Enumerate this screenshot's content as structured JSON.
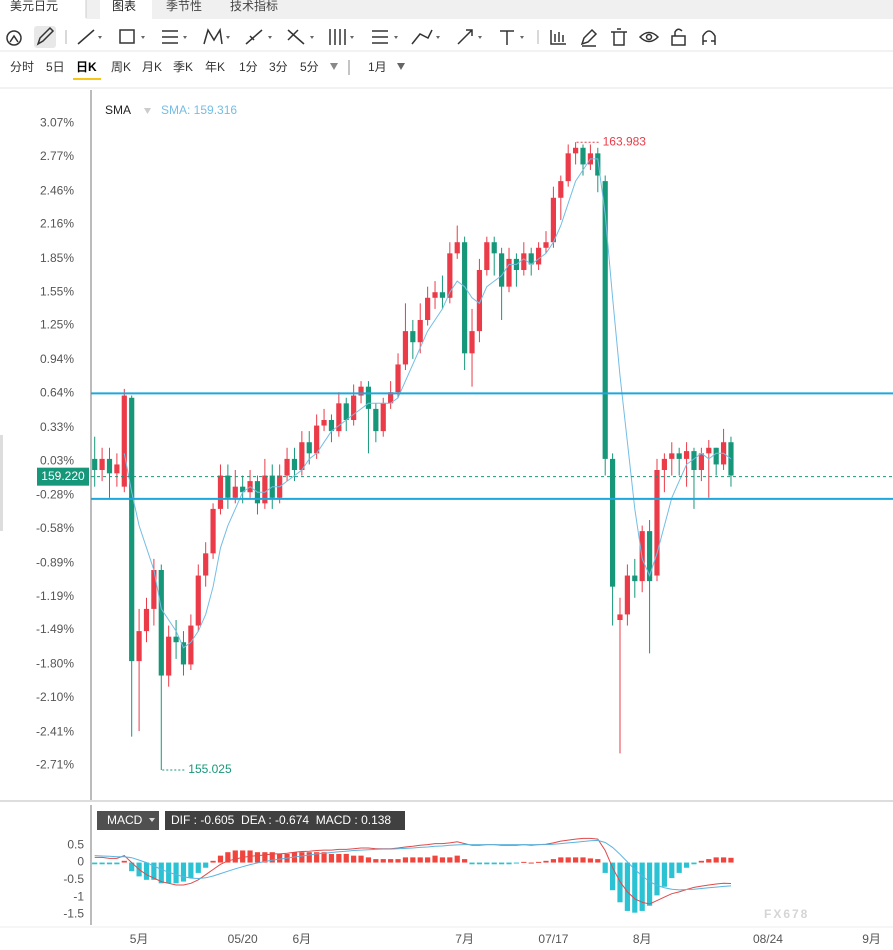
{
  "header": {
    "instrument": "美元日元",
    "tabs": [
      "图表",
      "季节性",
      "技术指标"
    ],
    "active_tab": 0
  },
  "periods": {
    "items": [
      "分时",
      "5日",
      "日K",
      "周K",
      "月K",
      "季K",
      "年K",
      "1分",
      "3分",
      "5分",
      "1月"
    ],
    "selected": 2
  },
  "watermark": "FX678",
  "chart_data": [
    {
      "type": "candlestick",
      "legend_value": "SMA: 159.316",
      "up_color": "#eb3b48",
      "down_color": "#17977a",
      "grid": false,
      "open": [
        0.05,
        -0.05,
        0.05,
        -0.08,
        -0.2,
        0.6,
        -1.77,
        -1.5,
        -1.3,
        -0.95,
        -1.9,
        -1.55,
        -1.6,
        -1.8,
        -1.45,
        -1.0,
        -0.8,
        -0.4,
        -0.1,
        -0.3,
        -0.2,
        -0.25,
        -0.15,
        -0.35,
        -0.1,
        -0.3,
        -0.1,
        0.05,
        -0.05,
        0.2,
        0.1,
        0.35,
        0.4,
        0.3,
        0.55,
        0.4,
        0.62,
        0.7,
        0.5,
        0.3,
        0.55,
        0.65,
        0.9,
        1.2,
        1.1,
        1.3,
        1.5,
        1.55,
        1.5,
        1.9,
        2.0,
        1.0,
        1.2,
        1.75,
        2.0,
        1.9,
        1.6,
        1.85,
        1.75,
        1.9,
        1.8,
        1.95,
        2.0,
        2.4,
        2.55,
        2.8,
        2.85,
        2.7,
        2.8,
        2.55,
        0.05,
        -1.4,
        -1.35,
        -1.0,
        -1.05,
        -0.6,
        -1.0,
        -0.05,
        0.05,
        0.1,
        0.05,
        0.12,
        -0.05,
        0.1,
        0.15,
        0.0,
        0.2
      ],
      "high": [
        0.25,
        0.15,
        0.15,
        0.1,
        0.68,
        0.62,
        -1.3,
        -1.2,
        -0.85,
        -0.9,
        -1.45,
        -1.4,
        -1.5,
        -1.35,
        -0.9,
        -0.7,
        -0.35,
        0.0,
        0.0,
        -0.05,
        -0.1,
        -0.05,
        -0.1,
        0.05,
        0.0,
        0.0,
        0.15,
        0.15,
        0.3,
        0.3,
        0.45,
        0.5,
        0.45,
        0.65,
        0.6,
        0.72,
        0.75,
        0.75,
        0.55,
        0.6,
        0.75,
        1.0,
        1.45,
        1.3,
        1.45,
        1.6,
        1.65,
        1.7,
        2.0,
        2.15,
        2.05,
        1.4,
        1.85,
        2.05,
        2.05,
        1.95,
        1.95,
        1.9,
        2.0,
        1.95,
        2.0,
        2.1,
        2.5,
        2.6,
        2.88,
        2.9,
        2.88,
        2.88,
        2.85,
        2.6,
        0.1,
        -1.2,
        -0.9,
        -0.85,
        -0.55,
        -0.5,
        0.05,
        0.1,
        0.2,
        0.15,
        0.2,
        0.15,
        0.15,
        0.22,
        0.15,
        0.32,
        0.25
      ],
      "low": [
        -0.2,
        -0.15,
        -0.3,
        -0.2,
        -0.25,
        -2.45,
        -2.4,
        -1.6,
        -1.45,
        -2.75,
        -2.0,
        -1.75,
        -1.9,
        -1.85,
        -1.5,
        -1.1,
        -0.85,
        -0.45,
        -0.4,
        -0.35,
        -0.35,
        -0.3,
        -0.45,
        -0.4,
        -0.4,
        -0.35,
        -0.15,
        -0.15,
        -0.1,
        0.0,
        0.05,
        0.3,
        0.2,
        0.25,
        0.3,
        0.35,
        0.55,
        0.1,
        0.2,
        0.25,
        0.5,
        0.6,
        0.85,
        0.95,
        1.0,
        1.25,
        1.4,
        1.4,
        1.45,
        1.85,
        0.85,
        0.7,
        1.1,
        1.7,
        1.7,
        1.3,
        1.55,
        1.6,
        1.7,
        1.7,
        1.75,
        1.9,
        1.95,
        2.2,
        2.5,
        2.7,
        2.6,
        2.65,
        2.45,
        -0.1,
        -1.45,
        -2.6,
        -1.45,
        -1.2,
        -1.15,
        -1.7,
        -1.05,
        -0.25,
        -0.1,
        -0.1,
        -0.2,
        -0.4,
        -0.15,
        -0.3,
        -0.1,
        -0.05,
        -0.2
      ],
      "close": [
        -0.05,
        0.05,
        -0.08,
        0.0,
        0.62,
        -1.77,
        -1.5,
        -1.3,
        -0.95,
        -1.9,
        -1.55,
        -1.6,
        -1.8,
        -1.45,
        -1.0,
        -0.8,
        -0.4,
        -0.1,
        -0.3,
        -0.2,
        -0.25,
        -0.15,
        -0.35,
        -0.1,
        -0.3,
        -0.1,
        0.05,
        -0.05,
        0.2,
        0.1,
        0.35,
        0.4,
        0.3,
        0.55,
        0.4,
        0.62,
        0.7,
        0.5,
        0.3,
        0.55,
        0.65,
        0.9,
        1.2,
        1.1,
        1.3,
        1.5,
        1.55,
        1.5,
        1.9,
        2.0,
        1.0,
        1.2,
        1.75,
        2.0,
        1.9,
        1.6,
        1.85,
        1.75,
        1.9,
        1.8,
        1.95,
        2.0,
        2.4,
        2.55,
        2.8,
        2.85,
        2.7,
        2.8,
        2.6,
        0.05,
        -1.1,
        -1.35,
        -1.0,
        -1.05,
        -0.6,
        -1.05,
        -0.05,
        0.05,
        0.1,
        0.05,
        0.12,
        -0.05,
        0.1,
        0.15,
        0.0,
        0.2,
        -0.1
      ],
      "series": [
        {
          "name": "SMA",
          "color": "#74bde4",
          "values": [
            null,
            null,
            null,
            null,
            0.1,
            -0.25,
            -0.55,
            -0.75,
            -0.95,
            -1.3,
            -1.4,
            -1.5,
            -1.65,
            -1.6,
            -1.5,
            -1.35,
            -1.1,
            -0.75,
            -0.55,
            -0.4,
            -0.25,
            -0.2,
            -0.25,
            -0.25,
            -0.2,
            -0.2,
            -0.15,
            -0.1,
            -0.05,
            0.05,
            0.1,
            0.2,
            0.3,
            0.35,
            0.4,
            0.45,
            0.5,
            0.55,
            0.55,
            0.55,
            0.55,
            0.6,
            0.75,
            0.9,
            1.05,
            1.2,
            1.3,
            1.4,
            1.55,
            1.65,
            1.6,
            1.5,
            1.45,
            1.6,
            1.65,
            1.7,
            1.8,
            1.8,
            1.85,
            1.8,
            1.85,
            1.9,
            2.0,
            2.15,
            2.35,
            2.55,
            2.65,
            2.75,
            2.75,
            2.25,
            1.5,
            0.8,
            0.2,
            -0.4,
            -0.85,
            -1.0,
            -0.8,
            -0.55,
            -0.3,
            -0.15,
            0.0,
            0.05,
            0.1,
            0.05,
            0.1,
            0.1,
            0.05
          ]
        }
      ],
      "xlim": [
        -0.5,
        107.9
      ],
      "ylim": [
        -3.02,
        3.37
      ],
      "yticks": [
        {
          "value": 3.07,
          "label": "3.07%"
        },
        {
          "value": 2.77,
          "label": "2.77%"
        },
        {
          "value": 2.46,
          "label": "2.46%"
        },
        {
          "value": 2.16,
          "label": "2.16%"
        },
        {
          "value": 1.85,
          "label": "1.85%"
        },
        {
          "value": 1.55,
          "label": "1.55%"
        },
        {
          "value": 1.25,
          "label": "1.25%"
        },
        {
          "value": 0.94,
          "label": "0.94%"
        },
        {
          "value": 0.64,
          "label": "0.64%"
        },
        {
          "value": 0.33,
          "label": "0.33%"
        },
        {
          "value": 0.03,
          "label": "0.03%"
        },
        {
          "value": -0.28,
          "label": "-0.28%"
        },
        {
          "value": -0.58,
          "label": "-0.58%"
        },
        {
          "value": -0.89,
          "label": "-0.89%"
        },
        {
          "value": -1.19,
          "label": "-1.19%"
        },
        {
          "value": -1.49,
          "label": "-1.49%"
        },
        {
          "value": -1.8,
          "label": "-1.80%"
        },
        {
          "value": -2.1,
          "label": "-2.10%"
        },
        {
          "value": -2.41,
          "label": "-2.41%"
        },
        {
          "value": -2.71,
          "label": "-2.71%"
        }
      ],
      "hlines": {
        "color": "#1ea7dc",
        "values": [
          0.64,
          -0.31
        ]
      },
      "last_price": {
        "value": -0.11,
        "label": "159.220",
        "color": "#17977a"
      },
      "annotations": [
        {
          "x": 65,
          "y": 2.9,
          "label": "163.983",
          "color": "#eb3b48"
        },
        {
          "x": 9,
          "y": -2.75,
          "label": "155.025",
          "color": "#17977a"
        }
      ]
    },
    {
      "type": "macd",
      "title": "MACD",
      "readout": "DIF : -0.605  DEA : -0.674  MACD : 0.138",
      "histogram": {
        "up_color": "#f0443c",
        "down_color": "#2bc3d4",
        "values": [
          -0.05,
          -0.05,
          -0.05,
          -0.05,
          0.05,
          -0.25,
          -0.4,
          -0.5,
          -0.5,
          -0.6,
          -0.6,
          -0.6,
          -0.55,
          -0.45,
          -0.3,
          -0.15,
          0.05,
          0.2,
          0.3,
          0.35,
          0.35,
          0.35,
          0.3,
          0.3,
          0.3,
          0.25,
          0.25,
          0.3,
          0.3,
          0.3,
          0.3,
          0.3,
          0.25,
          0.25,
          0.25,
          0.2,
          0.2,
          0.15,
          0.1,
          0.1,
          0.1,
          0.1,
          0.15,
          0.15,
          0.15,
          0.15,
          0.2,
          0.15,
          0.15,
          0.2,
          0.1,
          -0.05,
          -0.05,
          -0.05,
          -0.05,
          -0.05,
          -0.05,
          -0.02,
          0.02,
          0.0,
          0.02,
          0.05,
          0.1,
          0.15,
          0.15,
          0.15,
          0.15,
          0.12,
          0.1,
          -0.3,
          -0.8,
          -1.15,
          -1.4,
          -1.45,
          -1.4,
          -1.25,
          -0.95,
          -0.7,
          -0.45,
          -0.3,
          -0.15,
          -0.05,
          0.05,
          0.1,
          0.15,
          0.15,
          0.138
        ]
      },
      "series": [
        {
          "color": "#e04a4a",
          "values": [
            0.15,
            0.15,
            0.12,
            0.12,
            0.2,
            0.0,
            -0.2,
            -0.35,
            -0.45,
            -0.55,
            -0.6,
            -0.65,
            -0.65,
            -0.6,
            -0.5,
            -0.35,
            -0.2,
            -0.05,
            0.05,
            0.1,
            0.15,
            0.18,
            0.2,
            0.22,
            0.25,
            0.25,
            0.27,
            0.3,
            0.32,
            0.33,
            0.35,
            0.36,
            0.36,
            0.38,
            0.38,
            0.4,
            0.42,
            0.42,
            0.4,
            0.4,
            0.4,
            0.42,
            0.45,
            0.47,
            0.5,
            0.52,
            0.55,
            0.55,
            0.57,
            0.6,
            0.55,
            0.5,
            0.5,
            0.52,
            0.52,
            0.5,
            0.5,
            0.5,
            0.52,
            0.5,
            0.52,
            0.53,
            0.57,
            0.62,
            0.65,
            0.68,
            0.7,
            0.7,
            0.68,
            0.35,
            -0.15,
            -0.55,
            -0.85,
            -1.05,
            -1.15,
            -1.2,
            -1.1,
            -1.0,
            -0.9,
            -0.85,
            -0.78,
            -0.72,
            -0.68,
            -0.65,
            -0.62,
            -0.6,
            -0.605
          ]
        },
        {
          "color": "#5ab4e0",
          "values": [
            0.2,
            0.19,
            0.18,
            0.17,
            0.17,
            0.14,
            0.07,
            0.0,
            -0.1,
            -0.2,
            -0.28,
            -0.35,
            -0.41,
            -0.45,
            -0.46,
            -0.44,
            -0.39,
            -0.32,
            -0.25,
            -0.18,
            -0.12,
            -0.06,
            -0.01,
            0.03,
            0.07,
            0.1,
            0.13,
            0.16,
            0.19,
            0.22,
            0.25,
            0.27,
            0.29,
            0.31,
            0.33,
            0.35,
            0.36,
            0.37,
            0.38,
            0.39,
            0.39,
            0.4,
            0.41,
            0.42,
            0.44,
            0.45,
            0.47,
            0.48,
            0.5,
            0.51,
            0.52,
            0.52,
            0.52,
            0.52,
            0.52,
            0.52,
            0.52,
            0.52,
            0.52,
            0.52,
            0.52,
            0.52,
            0.53,
            0.55,
            0.57,
            0.59,
            0.61,
            0.63,
            0.64,
            0.58,
            0.44,
            0.24,
            0.02,
            -0.2,
            -0.39,
            -0.55,
            -0.66,
            -0.73,
            -0.77,
            -0.79,
            -0.78,
            -0.77,
            -0.75,
            -0.73,
            -0.71,
            -0.69,
            -0.674
          ]
        }
      ],
      "xlim": [
        -0.5,
        107.9
      ],
      "ylim": [
        -1.72,
        1.0
      ],
      "yticks": [
        0.5,
        0,
        -0.5,
        -1,
        -1.5
      ],
      "xticks": [
        {
          "value": 6,
          "label": "5月"
        },
        {
          "value": 20,
          "label": "05/20"
        },
        {
          "value": 28,
          "label": "6月"
        },
        {
          "value": 50,
          "label": "7月"
        },
        {
          "value": 62,
          "label": "07/17"
        },
        {
          "value": 74,
          "label": "8月"
        },
        {
          "value": 91,
          "label": "08/24"
        },
        {
          "value": 105,
          "label": "9月"
        }
      ]
    }
  ]
}
